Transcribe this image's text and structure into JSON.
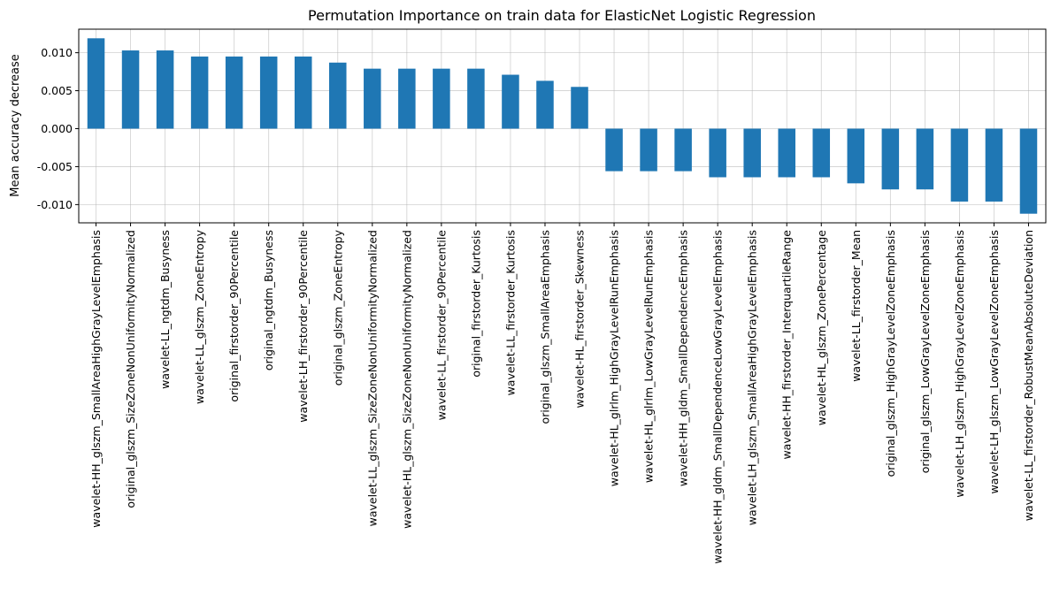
{
  "chart_data": {
    "type": "bar",
    "title": "Permutation Importance on train data for ElasticNet Logistic Regression",
    "xlabel": "",
    "ylabel": "Mean accuracy decrease",
    "ylim": [
      -0.0124,
      0.0131
    ],
    "yticks": [
      "0.010",
      "0.005",
      "0.000",
      "-0.005",
      "-0.010"
    ],
    "ytick_values": [
      0.01,
      0.005,
      0.0,
      -0.005,
      -0.01
    ],
    "grid": true,
    "bar_color": "#1f77b4",
    "categories": [
      "wavelet-HH_glszm_SmallAreaHighGrayLevelEmphasis",
      "original_glszm_SizeZoneNonUniformityNormalized",
      "wavelet-LL_ngtdm_Busyness",
      "wavelet-LL_glszm_ZoneEntropy",
      "original_firstorder_90Percentile",
      "original_ngtdm_Busyness",
      "wavelet-LH_firstorder_90Percentile",
      "original_glszm_ZoneEntropy",
      "wavelet-LL_glszm_SizeZoneNonUniformityNormalized",
      "wavelet-HL_glszm_SizeZoneNonUniformityNormalized",
      "wavelet-LL_firstorder_90Percentile",
      "original_firstorder_Kurtosis",
      "wavelet-LL_firstorder_Kurtosis",
      "original_glszm_SmallAreaEmphasis",
      "wavelet-HL_firstorder_Skewness",
      "wavelet-HL_glrlm_HighGrayLevelRunEmphasis",
      "wavelet-HL_glrlm_LowGrayLevelRunEmphasis",
      "wavelet-HH_gldm_SmallDependenceEmphasis",
      "wavelet-HH_gldm_SmallDependenceLowGrayLevelEmphasis",
      "wavelet-LH_glszm_SmallAreaHighGrayLevelEmphasis",
      "wavelet-HH_firstorder_InterquartileRange",
      "wavelet-HL_glszm_ZonePercentage",
      "wavelet-LL_firstorder_Mean",
      "original_glszm_HighGrayLevelZoneEmphasis",
      "original_glszm_LowGrayLevelZoneEmphasis",
      "wavelet-LH_glszm_HighGrayLevelZoneEmphasis",
      "wavelet-LH_glszm_LowGrayLevelZoneEmphasis",
      "wavelet-LL_firstorder_RobustMeanAbsoluteDeviation"
    ],
    "values": [
      0.0119,
      0.0103,
      0.0103,
      0.0095,
      0.0095,
      0.0095,
      0.0095,
      0.0087,
      0.0079,
      0.0079,
      0.0079,
      0.0079,
      0.0071,
      0.0063,
      0.0055,
      -0.0056,
      -0.0056,
      -0.0056,
      -0.0064,
      -0.0064,
      -0.0064,
      -0.0064,
      -0.0072,
      -0.008,
      -0.008,
      -0.0096,
      -0.0096,
      -0.0112
    ]
  }
}
